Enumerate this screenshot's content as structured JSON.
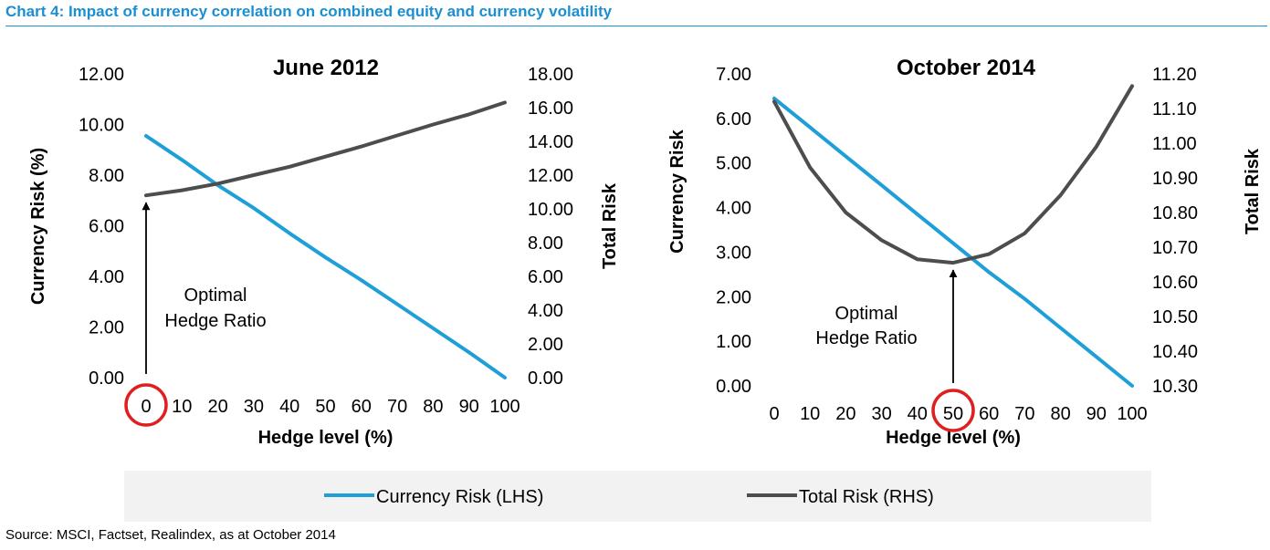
{
  "header": {
    "title": "Chart 4: Impact of currency correlation on combined equity and currency volatility"
  },
  "footer": {
    "source": "Source: MSCI, Factset, Realindex, as at October 2014"
  },
  "colors": {
    "title": "#1a8fd1",
    "currency_line": "#1f9fd8",
    "total_line": "#4d4d4d",
    "highlight_circle": "#e02020",
    "legend_bg": "#f2f2f2"
  },
  "legend": {
    "position": "bottom",
    "items": [
      {
        "label": "Currency Risk (LHS)",
        "color": "#1f9fd8"
      },
      {
        "label": "Total Risk (RHS)",
        "color": "#4d4d4d"
      }
    ]
  },
  "chart_data": [
    {
      "type": "line",
      "title": "June 2012",
      "xlabel": "Hedge level (%)",
      "ylabel": "Currency Risk (%)",
      "y2label": "Total Risk",
      "x": [
        0,
        10,
        20,
        30,
        40,
        50,
        60,
        70,
        80,
        90,
        100
      ],
      "ylim": [
        0,
        12
      ],
      "y2lim": [
        0,
        18
      ],
      "y_ticks": [
        "0.00",
        "2.00",
        "4.00",
        "6.00",
        "8.00",
        "10.00",
        "12.00"
      ],
      "y2_ticks": [
        "0.00",
        "2.00",
        "4.00",
        "6.00",
        "8.00",
        "10.00",
        "12.00",
        "14.00",
        "16.00",
        "18.00"
      ],
      "grid": false,
      "series": [
        {
          "name": "Currency Risk (LHS)",
          "axis": "left",
          "values": [
            9.55,
            8.6,
            7.6,
            6.7,
            5.7,
            4.75,
            3.85,
            2.9,
            1.95,
            1.0,
            0.0
          ]
        },
        {
          "name": "Total Risk (RHS)",
          "axis": "right",
          "values": [
            10.8,
            11.1,
            11.5,
            12.0,
            12.5,
            13.1,
            13.7,
            14.35,
            15.0,
            15.6,
            16.3
          ]
        }
      ],
      "annotation": {
        "text_line1": "Optimal",
        "text_line2": "Hedge Ratio",
        "x": 0,
        "circled_tick": "0"
      }
    },
    {
      "type": "line",
      "title": "October 2014",
      "xlabel": "Hedge level (%)",
      "ylabel": "Currency Risk",
      "y2label": "Total Risk",
      "x": [
        0,
        10,
        20,
        30,
        40,
        50,
        60,
        70,
        80,
        90,
        100
      ],
      "ylim": [
        0,
        7
      ],
      "y2lim": [
        10.3,
        11.2
      ],
      "y_ticks": [
        "0.00",
        "1.00",
        "2.00",
        "3.00",
        "4.00",
        "5.00",
        "6.00",
        "7.00"
      ],
      "y2_ticks": [
        "10.30",
        "10.40",
        "10.50",
        "10.60",
        "10.70",
        "10.80",
        "10.90",
        "11.00",
        "11.10",
        "11.20"
      ],
      "grid": false,
      "series": [
        {
          "name": "Currency Risk (LHS)",
          "axis": "left",
          "values": [
            6.45,
            5.8,
            5.15,
            4.5,
            3.85,
            3.2,
            2.55,
            1.95,
            1.3,
            0.65,
            0.0
          ]
        },
        {
          "name": "Total Risk (RHS)",
          "axis": "right",
          "values": [
            11.12,
            10.93,
            10.8,
            10.72,
            10.665,
            10.655,
            10.68,
            10.74,
            10.85,
            10.99,
            11.165
          ]
        }
      ],
      "annotation": {
        "text_line1": "Optimal",
        "text_line2": "Hedge Ratio",
        "x": 50,
        "circled_tick": "50"
      }
    }
  ]
}
